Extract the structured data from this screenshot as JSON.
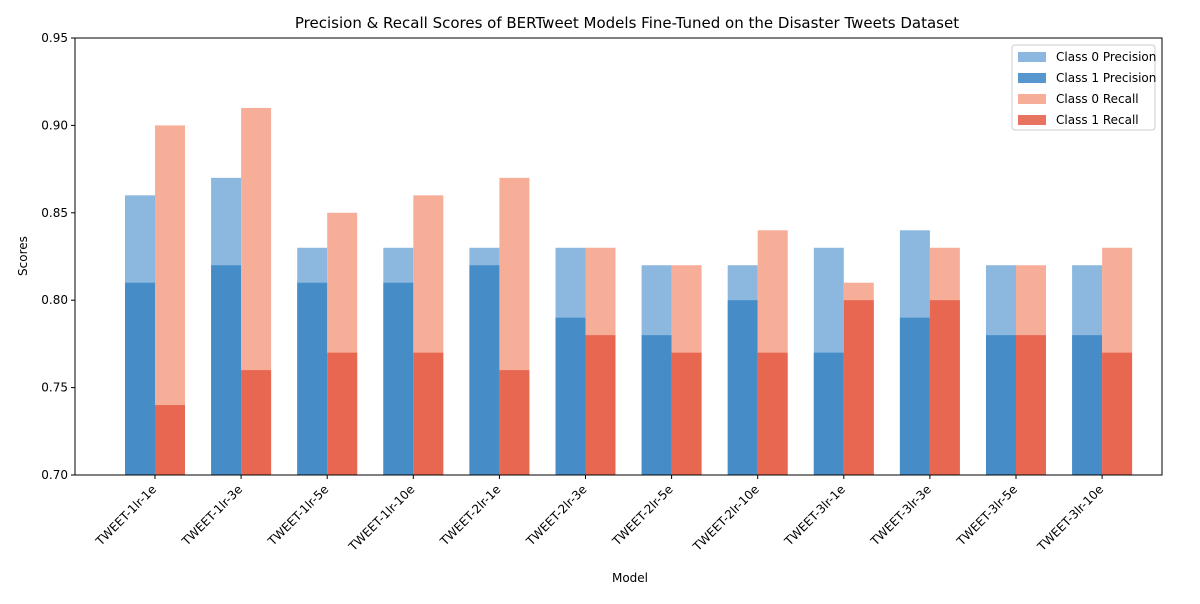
{
  "chart_data": {
    "type": "bar",
    "title": "Precision & Recall Scores of BERTweet Models Fine-Tuned on the Disaster Tweets Dataset",
    "xlabel": "Model",
    "ylabel": "Scores",
    "ylim": [
      0.7,
      0.95
    ],
    "yticks": [
      "0.70",
      "0.75",
      "0.80",
      "0.85",
      "0.90",
      "0.95"
    ],
    "grid": false,
    "legend_position": "top-right",
    "categories": [
      "TWEET-1lr-1e",
      "TWEET-1lr-3e",
      "TWEET-1lr-5e",
      "TWEET-1lr-10e",
      "TWEET-2lr-1e",
      "TWEET-2lr-3e",
      "TWEET-2lr-5e",
      "TWEET-2lr-10e",
      "TWEET-3lr-1e",
      "TWEET-3lr-3e",
      "TWEET-3lr-5e",
      "TWEET-3lr-10e"
    ],
    "series": [
      {
        "name": "Class 0 Precision",
        "group": "precision",
        "color": "#7fb0dc",
        "opacity": 0.9,
        "values": [
          0.86,
          0.87,
          0.83,
          0.83,
          0.83,
          0.83,
          0.82,
          0.82,
          0.83,
          0.84,
          0.82,
          0.82
        ]
      },
      {
        "name": "Class 1 Precision",
        "group": "precision",
        "color": "#3a85c4",
        "opacity": 0.85,
        "values": [
          0.81,
          0.82,
          0.81,
          0.81,
          0.82,
          0.79,
          0.78,
          0.8,
          0.77,
          0.79,
          0.78,
          0.78
        ]
      },
      {
        "name": "Class 0 Recall",
        "group": "recall",
        "color": "#f6a58e",
        "opacity": 0.9,
        "values": [
          0.9,
          0.91,
          0.85,
          0.86,
          0.87,
          0.83,
          0.82,
          0.84,
          0.81,
          0.83,
          0.82,
          0.83
        ]
      },
      {
        "name": "Class 1 Recall",
        "group": "recall",
        "color": "#e45a44",
        "opacity": 0.85,
        "values": [
          0.74,
          0.76,
          0.77,
          0.77,
          0.76,
          0.78,
          0.77,
          0.77,
          0.8,
          0.8,
          0.78,
          0.77
        ]
      }
    ]
  }
}
